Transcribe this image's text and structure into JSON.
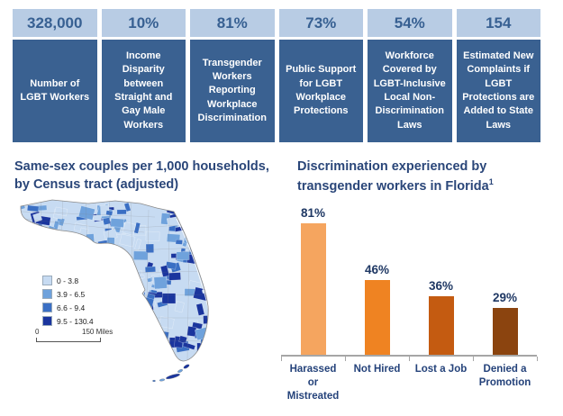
{
  "stats": {
    "header_bg": "#B8CCE4",
    "body_bg": "#3A6191",
    "value_color": "#376092",
    "body_text_color": "#FFFFFF",
    "items": [
      {
        "value": "328,000",
        "label": "Number of LGBT Workers"
      },
      {
        "value": "10%",
        "label": "Income Disparity between Straight and Gay Male Workers"
      },
      {
        "value": "81%",
        "label": "Transgender Workers Reporting Workplace Discrimination"
      },
      {
        "value": "73%",
        "label": "Public Support for LGBT Workplace Protections"
      },
      {
        "value": "54%",
        "label": "Workforce Covered by LGBT-Inclusive Local Non-Discrimination Laws"
      },
      {
        "value": "154",
        "label": "Estimated New Complaints if LGBT Protections are Added to State Laws"
      }
    ]
  },
  "map": {
    "title_line1": "Same-sex couples per 1,000 households,",
    "title_line2": "by Census tract (adjusted)",
    "legend": [
      {
        "label": "0 - 3.8",
        "color": "#C7DBF2"
      },
      {
        "label": "3.9 - 6.5",
        "color": "#6FA2DC"
      },
      {
        "label": "6.6 - 9.4",
        "color": "#3A6FC4"
      },
      {
        "label": "9.5 - 130.4",
        "color": "#1A359E"
      }
    ],
    "scale": {
      "start": "0",
      "end": "150 Miles"
    }
  },
  "chart_data": {
    "type": "bar",
    "title": "Discrimination experienced by transgender workers in Florida",
    "title_superscript": "1",
    "categories": [
      "Harassed or Mistreated",
      "Not Hired",
      "Lost a Job",
      "Denied a Promotion"
    ],
    "values": [
      81,
      46,
      36,
      29
    ],
    "value_labels": [
      "81%",
      "46%",
      "36%",
      "29%"
    ],
    "bar_colors": [
      "#F5A55F",
      "#EF8322",
      "#C45B11",
      "#8B440F"
    ],
    "ylabel": "",
    "xlabel": "",
    "ylim": [
      0,
      90
    ],
    "grid": false,
    "legend_position": "none",
    "axis_color": "#A6A6A6",
    "label_color": "#1F3864"
  }
}
